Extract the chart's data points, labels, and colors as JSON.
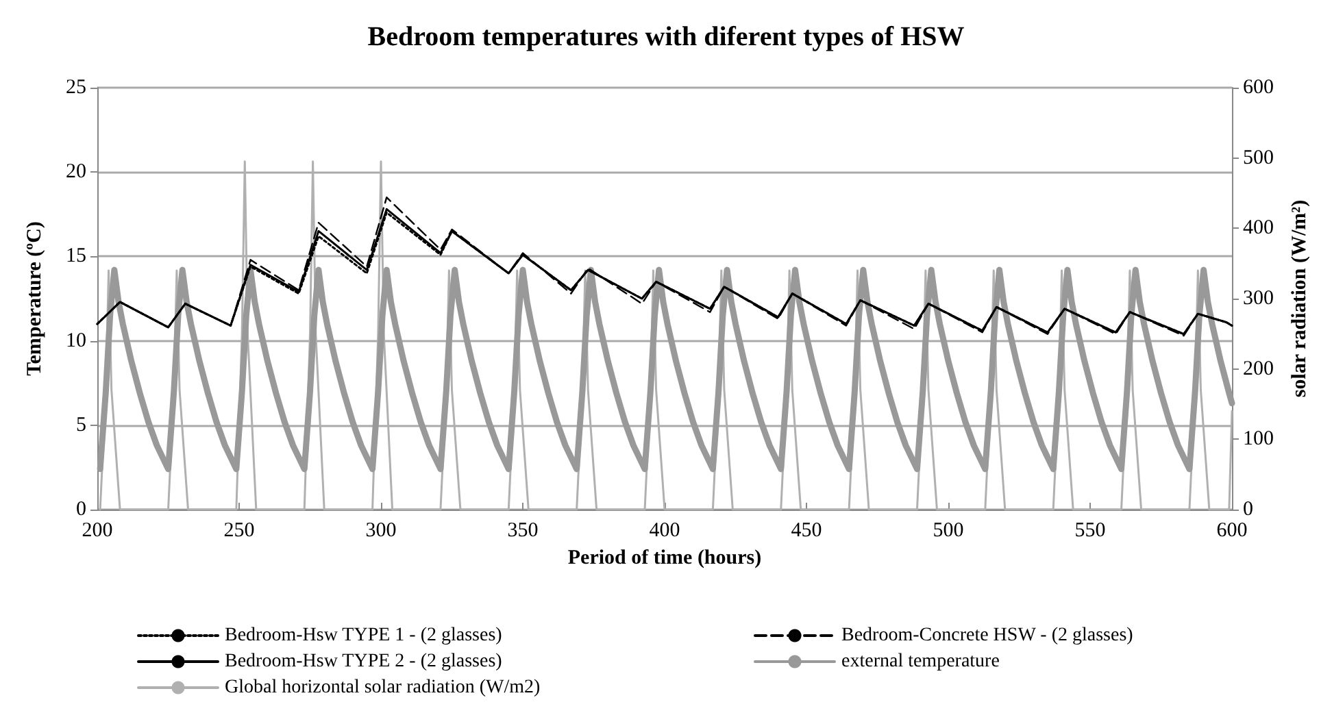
{
  "chart_data": {
    "type": "line",
    "title": "Bedroom temperatures with diferent types of HSW",
    "xlabel": "Period of time (hours)",
    "ylabel": "Temperature (ºC)",
    "y2label": "solar radiation (W/m²)",
    "x": [
      200,
      208,
      225,
      231,
      247,
      254,
      271,
      278,
      295,
      302,
      321,
      325,
      345,
      350,
      367,
      373,
      392,
      397,
      416,
      421,
      440,
      445,
      464,
      469,
      488,
      493,
      512,
      517,
      535,
      541,
      559,
      564,
      583,
      588,
      598,
      600
    ],
    "xlim": [
      200,
      600
    ],
    "xticks": [
      200,
      250,
      300,
      350,
      400,
      450,
      500,
      550,
      600
    ],
    "ylim": [
      0,
      25
    ],
    "yticks": [
      0,
      5,
      10,
      15,
      20,
      25
    ],
    "y2lim": [
      0,
      600
    ],
    "y2ticks": [
      0,
      100,
      200,
      300,
      400,
      500,
      600
    ],
    "grid": "y",
    "legend": "bottom",
    "marker": "none",
    "series": [
      {
        "name": "Bedroom-Hsw TYPE 1 - (2 glasses)",
        "color": "#000000",
        "line_style": "dotted",
        "values": [
          11.0,
          12.3,
          10.8,
          12.2,
          10.9,
          14.4,
          12.8,
          16.2,
          14.0,
          17.6,
          15.1,
          16.5,
          14.0,
          15.1,
          13.0,
          14.2,
          12.5,
          13.5,
          11.9,
          13.2,
          11.4,
          12.8,
          11.0,
          12.4,
          10.9,
          12.2,
          10.6,
          12.0,
          10.5,
          11.9,
          10.5,
          11.7,
          10.4,
          11.6,
          11.1,
          10.9
        ]
      },
      {
        "name": "Bedroom-Concrete HSW - (2 glasses)",
        "color": "#000000",
        "line_style": "dashed",
        "values": [
          11.0,
          12.3,
          10.8,
          12.2,
          10.9,
          14.8,
          13.0,
          17.0,
          14.4,
          18.5,
          15.4,
          16.6,
          14.0,
          15.2,
          12.8,
          14.3,
          12.2,
          13.5,
          11.7,
          13.2,
          11.3,
          12.8,
          10.9,
          12.4,
          10.7,
          12.2,
          10.5,
          12.0,
          10.4,
          11.9,
          10.4,
          11.7,
          10.3,
          11.6,
          11.1,
          10.9
        ]
      },
      {
        "name": "Bedroom-Hsw TYPE 2 - (2 glasses)",
        "color": "#000000",
        "line_style": "solid",
        "values": [
          11.0,
          12.3,
          10.8,
          12.2,
          10.9,
          14.5,
          12.9,
          16.5,
          14.2,
          17.8,
          15.2,
          16.5,
          14.0,
          15.1,
          13.0,
          14.2,
          12.5,
          13.5,
          11.9,
          13.2,
          11.4,
          12.8,
          11.0,
          12.4,
          10.9,
          12.2,
          10.6,
          12.0,
          10.5,
          11.9,
          10.5,
          11.7,
          10.4,
          11.6,
          11.1,
          10.9
        ]
      },
      {
        "name": "external temperature",
        "color": "#999999",
        "line_style": "solid",
        "x": [
          201,
          203,
          204.5,
          206,
          207.5,
          209,
          212,
          215,
          218,
          221,
          225,
          227,
          228.5,
          230,
          231.5,
          233,
          236,
          239,
          242,
          245,
          249,
          251,
          252.5,
          254,
          255.5,
          257,
          260,
          263,
          266,
          269,
          273,
          275,
          276.5,
          278,
          279.5,
          281,
          284,
          287,
          290,
          293,
          297,
          299,
          300.5,
          302,
          303.5,
          305,
          308,
          311,
          314,
          317,
          321,
          323,
          324.5,
          326,
          327.5,
          329,
          332,
          335,
          338,
          341,
          345,
          347,
          348.5,
          350,
          351.5,
          353,
          356,
          359,
          362,
          365,
          369,
          371,
          372.5,
          374,
          375.5,
          377,
          380,
          383,
          386,
          389,
          393,
          395,
          396.5,
          398,
          399.5,
          401,
          404,
          407,
          410,
          413,
          417,
          419,
          420.5,
          422,
          423.5,
          425,
          428,
          431,
          434,
          437,
          441,
          443,
          444.5,
          446,
          447.5,
          449,
          452,
          455,
          458,
          461,
          465,
          467,
          468.5,
          470,
          471.5,
          473,
          476,
          479,
          482,
          485,
          489,
          491,
          492.5,
          494,
          495.5,
          497,
          500,
          503,
          506,
          509,
          513,
          515,
          516.5,
          518,
          519.5,
          521,
          524,
          527,
          530,
          533,
          537,
          539,
          540.5,
          542,
          543.5,
          545,
          548,
          551,
          554,
          557,
          561,
          563,
          564.5,
          566,
          567.5,
          569,
          572,
          575,
          578,
          581,
          585,
          587,
          588.5,
          590,
          591.5,
          593,
          596,
          599,
          600
        ],
        "values": [
          2.4,
          7,
          11.5,
          14.2,
          12.3,
          11,
          8.8,
          6.9,
          5.2,
          3.8,
          2.4,
          7,
          11.5,
          14.2,
          12.3,
          11,
          8.8,
          6.9,
          5.2,
          3.8,
          2.4,
          7,
          11.5,
          14.2,
          12.3,
          11,
          8.8,
          6.9,
          5.2,
          3.8,
          2.4,
          7,
          11.5,
          14.2,
          12.3,
          11,
          8.8,
          6.9,
          5.2,
          3.8,
          2.4,
          7,
          11.5,
          14.2,
          12.3,
          11,
          8.8,
          6.9,
          5.2,
          3.8,
          2.4,
          7,
          11.5,
          14.2,
          12.3,
          11,
          8.8,
          6.9,
          5.2,
          3.8,
          2.4,
          7,
          11.5,
          14.2,
          12.3,
          11,
          8.8,
          6.9,
          5.2,
          3.8,
          2.4,
          7,
          11.5,
          14.2,
          12.3,
          11,
          8.8,
          6.9,
          5.2,
          3.8,
          2.4,
          7,
          11.5,
          14.2,
          12.3,
          11,
          8.8,
          6.9,
          5.2,
          3.8,
          2.4,
          7,
          11.5,
          14.2,
          12.3,
          11,
          8.8,
          6.9,
          5.2,
          3.8,
          2.4,
          7,
          11.5,
          14.2,
          12.3,
          11,
          8.8,
          6.9,
          5.2,
          3.8,
          2.4,
          7,
          11.5,
          14.2,
          12.3,
          11,
          8.8,
          6.9,
          5.2,
          3.8,
          2.4,
          7,
          11.5,
          14.2,
          12.3,
          11,
          8.8,
          6.9,
          5.2,
          3.8,
          2.4,
          7,
          11.5,
          14.2,
          12.3,
          11,
          8.8,
          6.9,
          5.2,
          3.8,
          2.4,
          7,
          11.5,
          14.2,
          12.3,
          11,
          8.8,
          6.9,
          5.2,
          3.8,
          2.4,
          7,
          11.5,
          14.2,
          12.3,
          11,
          8.8,
          6.9,
          5.2,
          3.8,
          2.4,
          7,
          11.5,
          14.2,
          12.3,
          11,
          8.8,
          6.9,
          6.3
        ]
      },
      {
        "name": "Global horizontal solar radiation (W/m2)",
        "color": "#b0b0b0",
        "line_style": "solid",
        "axis": "y2",
        "x": [
          201,
          203,
          204,
          205,
          208,
          225,
          227,
          228,
          229,
          232,
          249,
          251,
          252,
          253,
          256,
          273,
          275,
          276,
          277,
          280,
          297,
          299,
          300,
          301,
          304,
          321,
          323,
          324,
          325,
          328,
          345,
          347,
          348,
          349,
          352,
          369,
          371,
          372,
          373,
          376,
          393,
          395,
          396,
          397,
          400,
          417,
          419,
          420,
          421,
          424,
          441,
          443,
          444,
          445,
          448,
          465,
          467,
          468,
          469,
          472,
          489,
          491,
          492,
          493,
          496,
          513,
          515,
          516,
          517,
          520,
          537,
          539,
          540,
          541,
          544,
          561,
          563,
          564,
          565,
          568,
          585,
          587,
          588,
          589,
          592,
          599,
          600
        ],
        "values": [
          0,
          170,
          340,
          170,
          0,
          0,
          170,
          340,
          170,
          0,
          0,
          250,
          495,
          250,
          0,
          0,
          250,
          495,
          250,
          0,
          0,
          250,
          495,
          250,
          0,
          0,
          170,
          340,
          170,
          0,
          0,
          170,
          340,
          170,
          0,
          0,
          170,
          340,
          170,
          0,
          0,
          170,
          340,
          170,
          0,
          0,
          170,
          340,
          170,
          0,
          0,
          170,
          340,
          170,
          0,
          0,
          170,
          340,
          170,
          0,
          0,
          170,
          340,
          170,
          0,
          0,
          170,
          340,
          170,
          0,
          0,
          170,
          340,
          170,
          0,
          0,
          170,
          340,
          170,
          0,
          0,
          170,
          340,
          170,
          0,
          0,
          140
        ]
      }
    ]
  }
}
